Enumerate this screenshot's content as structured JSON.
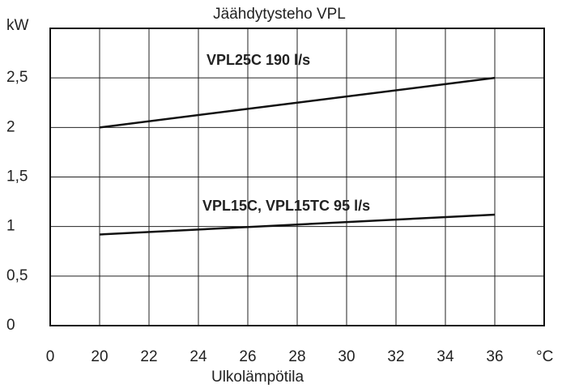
{
  "chart_data": {
    "type": "line",
    "title": "Jäähdytysteho VPL",
    "xlabel": "Ulkolämpötila",
    "ylabel": "kW",
    "xunit": "°C",
    "series": [
      {
        "name": "VPL25C 190 l/s",
        "color": "#111111",
        "x": [
          20,
          36
        ],
        "values": [
          2.0,
          2.5
        ]
      },
      {
        "name": "VPL15C, VPL15TC 95 l/s",
        "color": "#111111",
        "x": [
          20,
          36
        ],
        "values": [
          0.92,
          1.12
        ]
      }
    ],
    "xlim": [
      0,
      38
    ],
    "xticks": [
      0,
      20,
      22,
      24,
      26,
      28,
      30,
      32,
      34,
      36
    ],
    "ylim": [
      0,
      3
    ],
    "yticks": [
      0,
      {
        "value": 0.5,
        "label": "0,5"
      },
      1,
      {
        "value": 1.5,
        "label": "1,5"
      },
      2,
      {
        "value": 2.5,
        "label": "2,5"
      }
    ],
    "grid": true
  }
}
